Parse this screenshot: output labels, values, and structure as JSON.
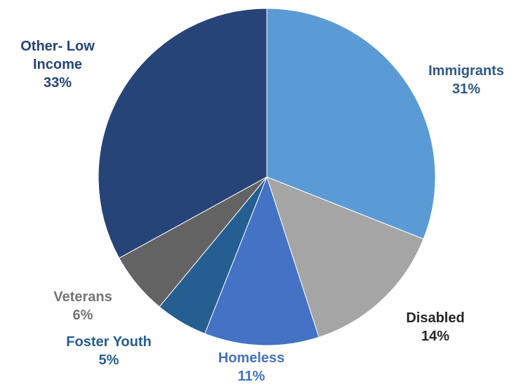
{
  "chart_data": {
    "type": "pie",
    "start_angle_deg": 0,
    "direction": "clockwise",
    "slices": [
      {
        "label": "Immigrants",
        "value": 31,
        "value_label": "31%",
        "color": "#5B9BD5",
        "label_color": "#2E5A88"
      },
      {
        "label": "Disabled",
        "value": 14,
        "value_label": "14%",
        "color": "#A5A5A5",
        "label_color": "#262626"
      },
      {
        "label": "Homeless",
        "value": 11,
        "value_label": "11%",
        "color": "#4472C4",
        "label_color": "#4472C4"
      },
      {
        "label": "Foster Youth",
        "value": 5,
        "value_label": "5%",
        "color": "#255E91",
        "label_color": "#255E91"
      },
      {
        "label": "Veterans",
        "value": 6,
        "value_label": "6%",
        "color": "#636363",
        "label_color": "#757575"
      },
      {
        "label": "Other- Low Income",
        "value": 33,
        "value_label": "33%",
        "color": "#264478",
        "label_color": "#264478"
      }
    ]
  }
}
